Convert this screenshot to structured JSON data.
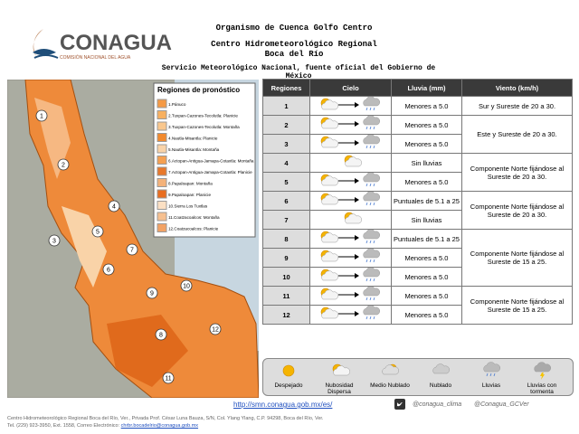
{
  "header": {
    "logo": "CONAGUA",
    "logo_subtitle": "COMISIÓN NACIONAL DEL AGUA",
    "line1": "Organismo de Cuenca Golfo Centro",
    "line2": "Centro Hidrometeorológico Regional",
    "line3": "Boca del Río",
    "line4": "Servicio Meteorológico Nacional, fuente oficial del Gobierno de México"
  },
  "map": {
    "legend_title": "Regiones de pronóstico",
    "regions": [
      "1.Pánuco",
      "2.Tuxpan-Cazones-Tecolutla: Planicie",
      "3.Tuxpan-Cazones-Tecolutla: Montaña",
      "4.Nautla-Misantla: Planicie",
      "5.Nautla-Misantla: Montaña",
      "6.Actopan-Antigua-Jamapa-Cotaxtla: Montaña",
      "7.Actopan-Antigua-Jamapa-Cotaxtla: Planicie",
      "8.Papaloapan: Montaña",
      "9.Papaloapan: Planicie",
      "10.Sierra Los Tuxtlas",
      "11.Coatzacoalcos: Montaña",
      "12.Coatzacoalcos: Planicie"
    ]
  },
  "table": {
    "headers": [
      "Regiones",
      "Cielo",
      "Lluvia (mm)",
      "Viento (km/h)"
    ],
    "rows": [
      [
        "1",
        "Menores a 5.0"
      ],
      [
        "2",
        "Menores a 5.0"
      ],
      [
        "3",
        "Menores a 5.0"
      ],
      [
        "4",
        "Sin lluvias"
      ],
      [
        "5",
        "Menores a 5.0"
      ],
      [
        "6",
        "Puntuales de 5.1 a 25"
      ],
      [
        "7",
        "Sin lluvias"
      ],
      [
        "8",
        "Puntuales de 5.1 a 25"
      ],
      [
        "9",
        "Menores a 5.0"
      ],
      [
        "10",
        "Menores a 5.0"
      ],
      [
        "11",
        "Menores a 5.0"
      ],
      [
        "12",
        "Menores a 5.0"
      ]
    ],
    "wind": [
      "Sur y Sureste de 20 a 30.",
      "Este y Sureste de 20 a 30.",
      "Componente Norte fijándose al Sureste de 20 a 30.",
      "Componente Norte fijándose al Sureste de 20 a 30.",
      "Componente Norte fijándose al Sureste de 15 a 25.",
      "Componente Norte fijándose al Sureste de 15 a 25."
    ]
  },
  "sky_legend": [
    "Despejado",
    "Nubosidad Dispersa",
    "Medio Nublado",
    "Nublado",
    "Lluvias",
    "Lluvias con tormenta"
  ],
  "footer": {
    "url": "http://smn.conagua.gob.mx/es/",
    "twitter1": "@conagua_clima",
    "twitter2": "@Conagua_GCVer",
    "address": "Centro Hidrometeorológico Regional Boca del Río, Ver., Privada Prof. César Luna Bauza, S/N, Col. Ylang Ylang, C.P. 94298, Boca del Río, Ver.",
    "contact": "Tel. (229) 923-3950, Ext. 1558, Correo Electrónico:",
    "email": "chrbr.bocadelrio@conagua.gob.mx"
  }
}
